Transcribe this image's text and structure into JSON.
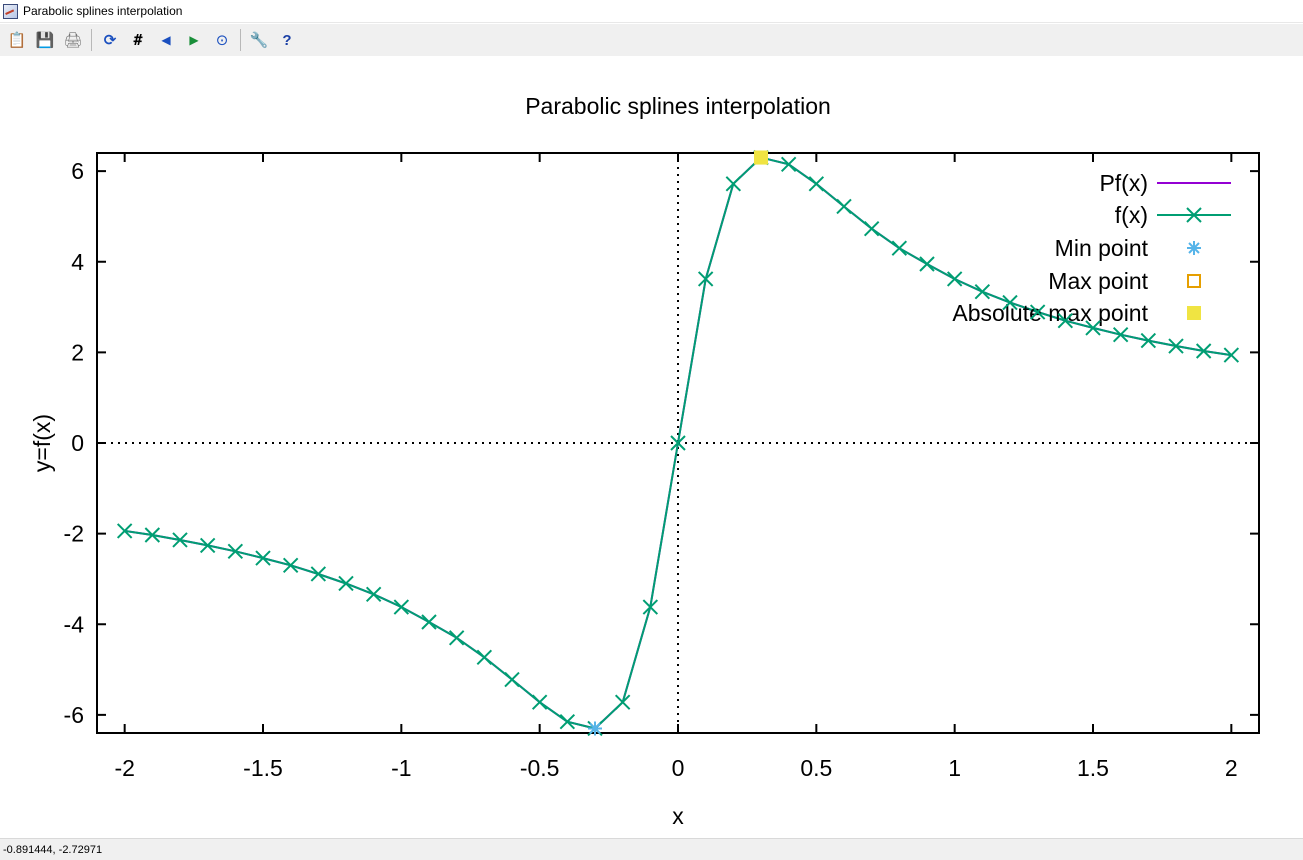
{
  "window": {
    "title": "Parabolic splines interpolation"
  },
  "toolbar": {
    "buttons": [
      {
        "name": "copy-clipboard-icon",
        "glyph": "📋"
      },
      {
        "name": "export-icon",
        "glyph": "💾"
      },
      {
        "name": "print-icon",
        "glyph": "🖨"
      },
      {
        "name": "replot-icon",
        "glyph": "⟳"
      },
      {
        "name": "grid-icon",
        "glyph": "#"
      },
      {
        "name": "zoom-previous-icon",
        "glyph": "◀"
      },
      {
        "name": "zoom-next-icon",
        "glyph": "▶"
      },
      {
        "name": "autoscale-icon",
        "glyph": "⊙"
      },
      {
        "name": "options-icon",
        "glyph": "🔧"
      },
      {
        "name": "help-icon",
        "glyph": "?"
      }
    ]
  },
  "status": {
    "coords": "-0.891444, -2.72971"
  },
  "colors": {
    "pf": "#9400d3",
    "f": "#009e73",
    "min": "#56b4e9",
    "max": "#e69f00",
    "absmax": "#f0e442",
    "axis": "#000000"
  },
  "chart_data": {
    "type": "line",
    "title": "Parabolic splines interpolation",
    "xlabel": "x",
    "ylabel": "y=f(x)",
    "xlim": [
      -2.1,
      2.1
    ],
    "ylim": [
      -6.4,
      6.4
    ],
    "xticks": [
      -2,
      -1.5,
      -1,
      -0.5,
      0,
      0.5,
      1,
      1.5,
      2
    ],
    "xtick_labels": [
      "-2",
      "-1.5",
      "-1",
      "-0.5",
      "0",
      "0.5",
      "1",
      "1.5",
      "2"
    ],
    "yticks": [
      -6,
      -4,
      -2,
      0,
      2,
      4,
      6
    ],
    "ytick_labels": [
      "-6",
      "-4",
      "-2",
      "0",
      "2",
      "4",
      "6"
    ],
    "zero_axes": true,
    "legend_position": "top-right",
    "series": [
      {
        "name": "Pf(x)",
        "style": "line",
        "x": [
          -2,
          -1.9,
          -1.8,
          -1.7,
          -1.6,
          -1.5,
          -1.4,
          -1.3,
          -1.2,
          -1.1,
          -1.0,
          -0.9,
          -0.8,
          -0.7,
          -0.6,
          -0.5,
          -0.4,
          -0.3,
          -0.2,
          -0.1,
          0,
          0.1,
          0.2,
          0.3,
          0.4,
          0.5,
          0.6,
          0.7,
          0.8,
          0.9,
          1.0,
          1.1,
          1.2,
          1.3,
          1.4,
          1.5,
          1.6,
          1.7,
          1.8,
          1.9,
          2.0
        ],
        "y": [
          -1.94,
          -2.03,
          -2.14,
          -2.26,
          -2.39,
          -2.54,
          -2.7,
          -2.89,
          -3.1,
          -3.34,
          -3.62,
          -3.95,
          -4.3,
          -4.73,
          -5.22,
          -5.72,
          -6.15,
          -6.3,
          -5.72,
          -3.62,
          0,
          3.62,
          5.72,
          6.3,
          6.15,
          5.72,
          5.22,
          4.73,
          4.3,
          3.95,
          3.62,
          3.34,
          3.1,
          2.89,
          2.7,
          2.54,
          2.39,
          2.26,
          2.14,
          2.03,
          1.94
        ]
      },
      {
        "name": "f(x)",
        "style": "linespoints",
        "x": [
          -2,
          -1.9,
          -1.8,
          -1.7,
          -1.6,
          -1.5,
          -1.4,
          -1.3,
          -1.2,
          -1.1,
          -1.0,
          -0.9,
          -0.8,
          -0.7,
          -0.6,
          -0.5,
          -0.4,
          -0.3,
          -0.2,
          -0.1,
          0,
          0.1,
          0.2,
          0.3,
          0.4,
          0.5,
          0.6,
          0.7,
          0.8,
          0.9,
          1.0,
          1.1,
          1.2,
          1.3,
          1.4,
          1.5,
          1.6,
          1.7,
          1.8,
          1.9,
          2.0
        ],
        "y": [
          -1.94,
          -2.03,
          -2.14,
          -2.26,
          -2.39,
          -2.54,
          -2.7,
          -2.89,
          -3.1,
          -3.34,
          -3.62,
          -3.95,
          -4.3,
          -4.73,
          -5.22,
          -5.72,
          -6.15,
          -6.3,
          -5.72,
          -3.62,
          0,
          3.62,
          5.72,
          6.3,
          6.15,
          5.72,
          5.22,
          4.73,
          4.3,
          3.95,
          3.62,
          3.34,
          3.1,
          2.89,
          2.7,
          2.54,
          2.39,
          2.26,
          2.14,
          2.03,
          1.94
        ]
      },
      {
        "name": "Min point",
        "style": "points",
        "x": [
          -0.3
        ],
        "y": [
          -6.3
        ]
      },
      {
        "name": "Max point",
        "style": "points",
        "x": [
          0.3
        ],
        "y": [
          6.3
        ]
      },
      {
        "name": "Absolute max point",
        "style": "points",
        "x": [
          0.3
        ],
        "y": [
          6.3
        ]
      }
    ]
  }
}
